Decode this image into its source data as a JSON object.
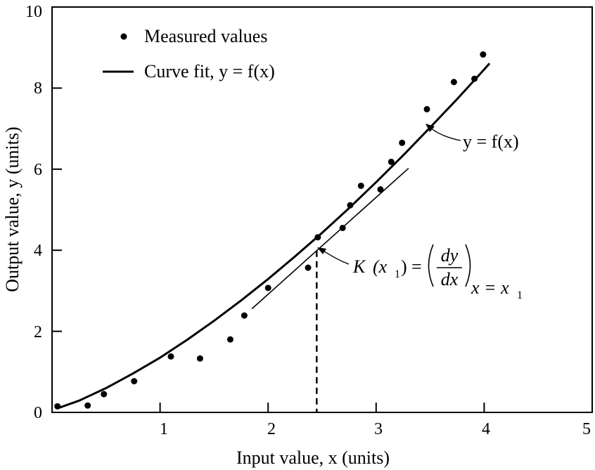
{
  "chart_data": {
    "type": "scatter",
    "xlabel": "Input value, x (units)",
    "ylabel": "Output value, y (units)",
    "xlim": [
      0,
      5
    ],
    "ylim": [
      0,
      10
    ],
    "x_ticks": [
      "1",
      "2",
      "3",
      "4",
      "5"
    ],
    "y_ticks": [
      "0",
      "2",
      "4",
      "6",
      "8",
      "10"
    ],
    "grid": false,
    "legend_position": "top-left",
    "legend": {
      "points_label": "Measured values",
      "line_label": "Curve fit, y = f(x)"
    },
    "series": [
      {
        "name": "Measured values",
        "type": "scatter",
        "x": [
          0.05,
          0.33,
          0.48,
          0.76,
          1.1,
          1.37,
          1.65,
          1.78,
          2.0,
          2.37,
          2.46,
          2.69,
          2.76,
          2.86,
          3.04,
          3.14,
          3.24,
          3.47,
          3.72,
          3.91,
          3.99
        ],
        "y": [
          0.15,
          0.17,
          0.45,
          0.77,
          1.38,
          1.33,
          1.8,
          2.39,
          3.07,
          3.57,
          4.32,
          4.55,
          5.11,
          5.59,
          5.5,
          6.18,
          6.65,
          7.48,
          8.15,
          8.23,
          8.83
        ]
      },
      {
        "name": "Curve fit, y = f(x)",
        "type": "line",
        "x": [
          0.05,
          0.25,
          0.5,
          0.75,
          1.0,
          1.25,
          1.5,
          1.75,
          2.0,
          2.25,
          2.5,
          2.75,
          3.0,
          3.25,
          3.5,
          3.75,
          4.0,
          4.05
        ],
        "y": [
          0.1,
          0.29,
          0.6,
          0.96,
          1.35,
          1.79,
          2.26,
          2.76,
          3.29,
          3.85,
          4.43,
          5.04,
          5.68,
          6.34,
          7.03,
          7.73,
          8.46,
          8.61
        ]
      }
    ],
    "annotations": {
      "curve_label": "y = f(x)",
      "curve_label_at": [
        3.47,
        7.0
      ],
      "tangent_x1": 2.45,
      "tangent_y1": 3.99,
      "tangent_slope": 2.39,
      "tangent_from_x": 1.85,
      "tangent_to_x": 3.3,
      "slope_label": {
        "K": "K",
        "x1": "(x",
        "sub1": "1",
        "close": ")",
        "eq": "=",
        "numerator": "dy",
        "denominator": "dx",
        "subscript": "x = x",
        "subscript_index": "1"
      }
    }
  }
}
